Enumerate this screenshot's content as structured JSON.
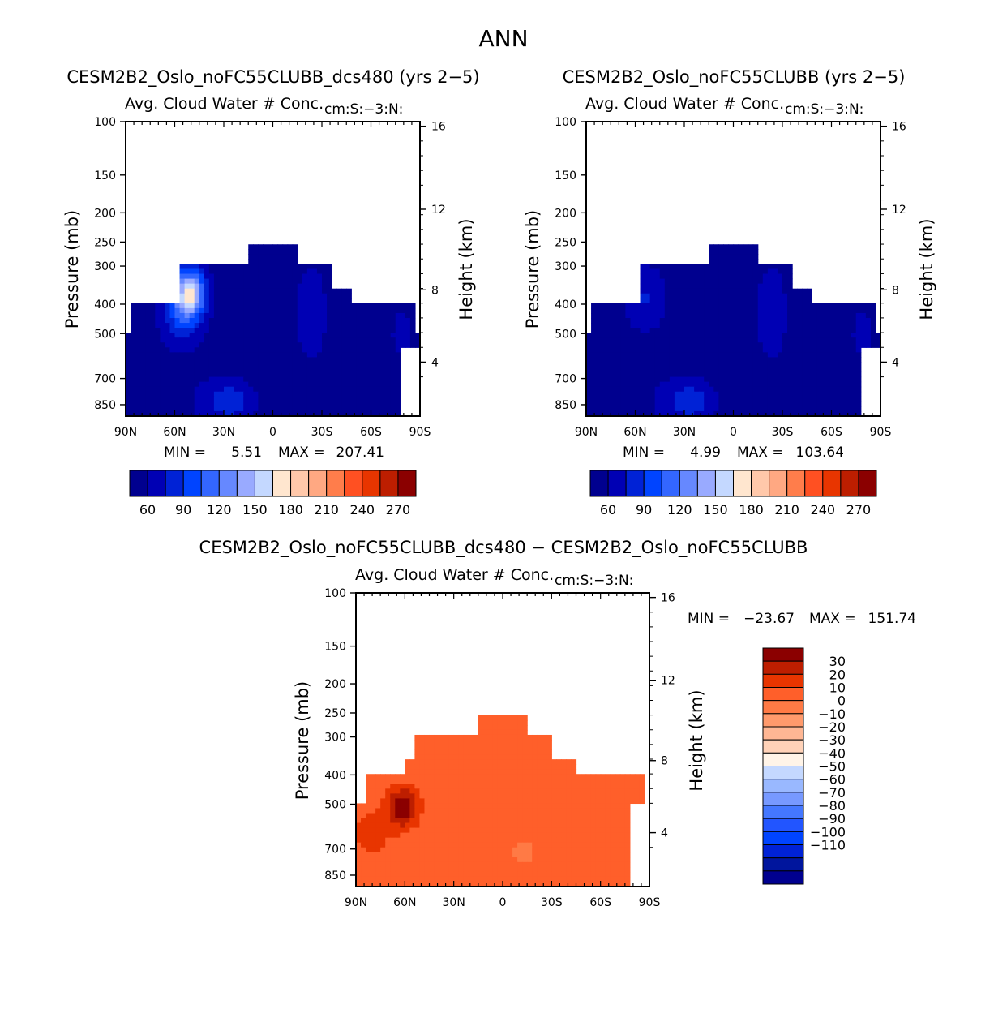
{
  "page_title": "ANN",
  "colors": {
    "abs_fill": [
      "#00008f",
      "#0000b4",
      "#0022d6",
      "#0044ff",
      "#3366ff",
      "#6688ff",
      "#99aaff",
      "#c4d8ff",
      "#ffe6cf",
      "#ffc8aa",
      "#ffa882",
      "#ff7d4b",
      "#ff5022",
      "#e83500",
      "#bd1e00",
      "#8b0000"
    ],
    "diff_fill": [
      "#00008f",
      "#00159d",
      "#0022d6",
      "#0044ff",
      "#2255ff",
      "#4477ff",
      "#7799ff",
      "#99b8ff",
      "#c4d8ff",
      "#fff4e8",
      "#ffd2b8",
      "#ffb794",
      "#ff9a6c",
      "#ff7a45",
      "#ff5f2a",
      "#e83500",
      "#bd1e00",
      "#8b0000"
    ]
  },
  "chart_data": [
    {
      "type": "contour",
      "title": "CESM2B2_Oslo_noFC55CLUBB_dcs480 (yrs 2−5)",
      "subtitle_left": "Avg. Cloud Water # Conc.",
      "subtitle_right": "cm:S:−3:N:",
      "ylabel": "Pressure (mb)",
      "ylabel_right": "Height (km)",
      "x_ticks": [
        "90N",
        "60N",
        "30N",
        "0",
        "30S",
        "60S",
        "90S"
      ],
      "y_ticks": [
        "100",
        "150",
        "200",
        "250",
        "300",
        "400",
        "500",
        "700",
        "850"
      ],
      "y_ticks_right": [
        "16",
        "12",
        "8",
        "4"
      ],
      "stats": {
        "min_label": "MIN =",
        "min": "5.51",
        "max_label": "MAX =",
        "max": "207.41"
      },
      "colorbar": {
        "labels": [
          "60",
          "90",
          "120",
          "150",
          "180",
          "210",
          "240",
          "270"
        ]
      }
    },
    {
      "type": "contour",
      "title": "CESM2B2_Oslo_noFC55CLUBB (yrs 2−5)",
      "subtitle_left": "Avg. Cloud Water # Conc.",
      "subtitle_right": "cm:S:−3:N:",
      "ylabel": "Pressure (mb)",
      "ylabel_right": "Height (km)",
      "x_ticks": [
        "90N",
        "60N",
        "30N",
        "0",
        "30S",
        "60S",
        "90S"
      ],
      "y_ticks": [
        "100",
        "150",
        "200",
        "250",
        "300",
        "400",
        "500",
        "700",
        "850"
      ],
      "y_ticks_right": [
        "16",
        "12",
        "8",
        "4"
      ],
      "stats": {
        "min_label": "MIN =",
        "min": "4.99",
        "max_label": "MAX =",
        "max": "103.64"
      },
      "colorbar": {
        "labels": [
          "60",
          "90",
          "120",
          "150",
          "180",
          "210",
          "240",
          "270"
        ]
      }
    },
    {
      "type": "contour",
      "title": "CESM2B2_Oslo_noFC55CLUBB_dcs480 − CESM2B2_Oslo_noFC55CLUBB",
      "subtitle_left": "Avg. Cloud Water # Conc.",
      "subtitle_right": "cm:S:−3:N:",
      "ylabel": "Pressure (mb)",
      "ylabel_right": "Height (km)",
      "x_ticks": [
        "90N",
        "60N",
        "30N",
        "0",
        "30S",
        "60S",
        "90S"
      ],
      "y_ticks": [
        "100",
        "150",
        "200",
        "250",
        "300",
        "400",
        "500",
        "700",
        "850"
      ],
      "y_ticks_right": [
        "16",
        "12",
        "8",
        "4"
      ],
      "stats": {
        "min_label": "MIN =",
        "min": "−23.67",
        "max_label": "MAX =",
        "max": "151.74"
      },
      "colorbar": {
        "labels": [
          "30",
          "20",
          "10",
          "0",
          "−10",
          "−20",
          "−30",
          "−40",
          "−50",
          "−60",
          "−70",
          "−80",
          "−90",
          "−100",
          "−110"
        ]
      }
    }
  ]
}
